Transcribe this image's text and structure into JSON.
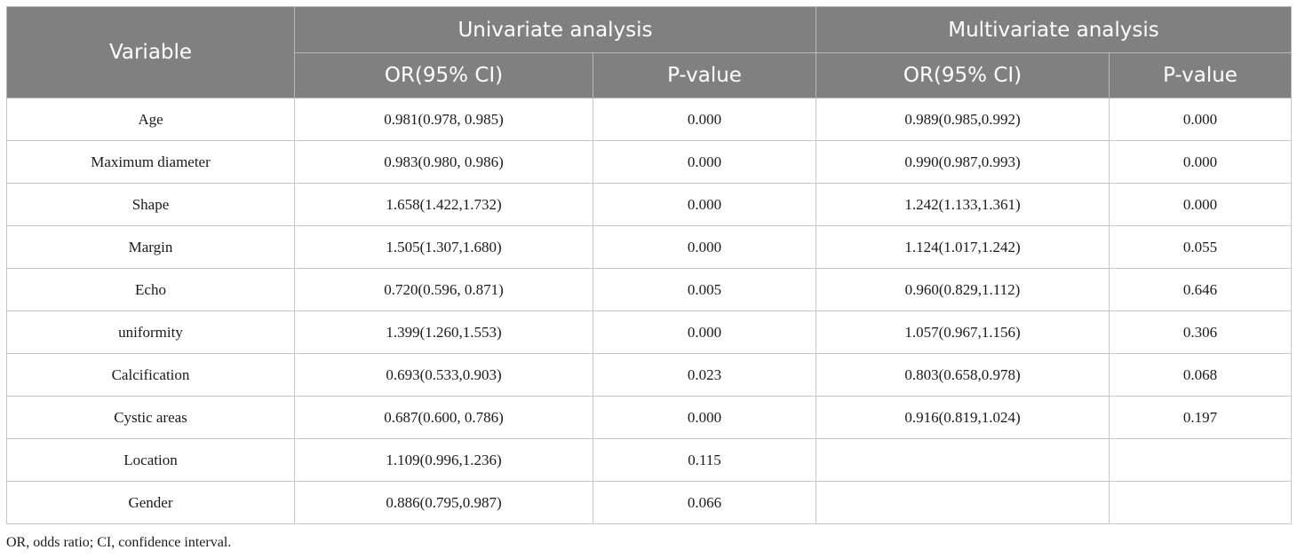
{
  "header": {
    "variable": "Variable",
    "univariate": "Univariate analysis",
    "multivariate": "Multivariate analysis",
    "or_ci": "OR(95% CI)",
    "p_value": "P-value"
  },
  "rows": [
    {
      "variable": "Age",
      "uni_or": "0.981(0.978, 0.985)",
      "uni_p": "0.000",
      "multi_or": "0.989(0.985,0.992)",
      "multi_p": "0.000"
    },
    {
      "variable": "Maximum diameter",
      "uni_or": "0.983(0.980, 0.986)",
      "uni_p": "0.000",
      "multi_or": "0.990(0.987,0.993)",
      "multi_p": "0.000"
    },
    {
      "variable": "Shape",
      "uni_or": "1.658(1.422,1.732)",
      "uni_p": "0.000",
      "multi_or": "1.242(1.133,1.361)",
      "multi_p": "0.000"
    },
    {
      "variable": "Margin",
      "uni_or": "1.505(1.307,1.680)",
      "uni_p": "0.000",
      "multi_or": "1.124(1.017,1.242)",
      "multi_p": "0.055"
    },
    {
      "variable": "Echo",
      "uni_or": "0.720(0.596, 0.871)",
      "uni_p": "0.005",
      "multi_or": "0.960(0.829,1.112)",
      "multi_p": "0.646"
    },
    {
      "variable": "uniformity",
      "uni_or": "1.399(1.260,1.553)",
      "uni_p": "0.000",
      "multi_or": "1.057(0.967,1.156)",
      "multi_p": "0.306"
    },
    {
      "variable": "Calcification",
      "uni_or": "0.693(0.533,0.903)",
      "uni_p": "0.023",
      "multi_or": "0.803(0.658,0.978)",
      "multi_p": "0.068"
    },
    {
      "variable": "Cystic areas",
      "uni_or": "0.687(0.600, 0.786)",
      "uni_p": "0.000",
      "multi_or": "0.916(0.819,1.024)",
      "multi_p": "0.197"
    },
    {
      "variable": "Location",
      "uni_or": "1.109(0.996,1.236)",
      "uni_p": "0.115",
      "multi_or": "",
      "multi_p": ""
    },
    {
      "variable": "Gender",
      "uni_or": "0.886(0.795,0.987)",
      "uni_p": "0.066",
      "multi_or": "",
      "multi_p": ""
    }
  ],
  "footnote": "OR, odds ratio; CI, confidence interval."
}
